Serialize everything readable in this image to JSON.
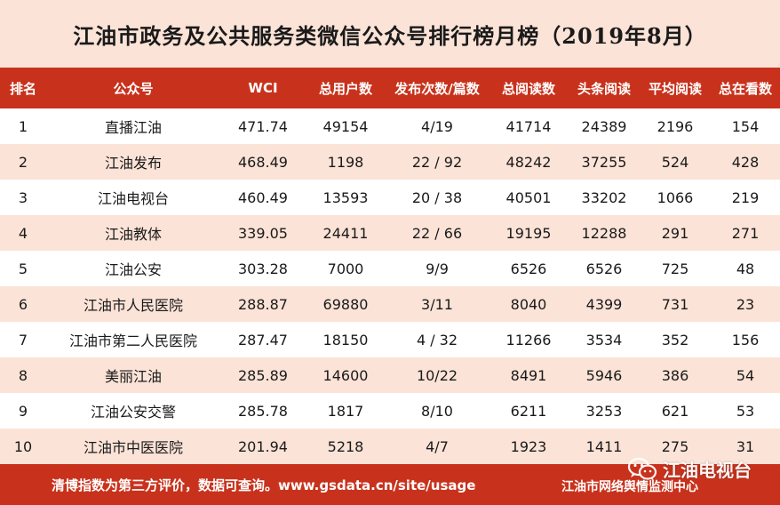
{
  "title": "江油市政务及公共服务类微信公众号排行榜月榜（2019年8月）",
  "columns": [
    "排名",
    "公众号",
    "WCI",
    "总用户数",
    "发布次数/篇数",
    "总阅读数",
    "头条阅读",
    "平均阅读",
    "总在看数"
  ],
  "rows": [
    [
      "1",
      "直播江油",
      "471.74",
      "49154",
      "4/19",
      "41714",
      "24389",
      "2196",
      "154"
    ],
    [
      "2",
      "江油发布",
      "468.49",
      "1198",
      "22 / 92",
      "48242",
      "37255",
      "524",
      "428"
    ],
    [
      "3",
      "江油电视台",
      "460.49",
      "13593",
      "20 / 38",
      "40501",
      "33202",
      "1066",
      "219"
    ],
    [
      "4",
      "江油教体",
      "339.05",
      "24411",
      "22 / 66",
      "19195",
      "12288",
      "291",
      "271"
    ],
    [
      "5",
      "江油公安",
      "303.28",
      "7000",
      "9/9",
      "6526",
      "6526",
      "725",
      "48"
    ],
    [
      "6",
      "江油市人民医院",
      "288.87",
      "69880",
      "3/11",
      "8040",
      "4399",
      "731",
      "23"
    ],
    [
      "7",
      "江油市第二人民医院",
      "287.47",
      "18150",
      "4 / 32",
      "11266",
      "3534",
      "352",
      "156"
    ],
    [
      "8",
      "美丽江油",
      "285.89",
      "14600",
      "10/22",
      "8491",
      "5946",
      "386",
      "54"
    ],
    [
      "9",
      "江油公安交警",
      "285.78",
      "1817",
      "8/10",
      "6211",
      "3253",
      "621",
      "53"
    ],
    [
      "10",
      "江油市中医医院",
      "201.94",
      "5218",
      "4/7",
      "1923",
      "1411",
      "275",
      "31"
    ]
  ],
  "footer": {
    "note": "清博指数为第三方评价，数据可查询。www.gsdata.cn/site/usage",
    "org": "江油市网络舆情监测中心"
  },
  "watermark": {
    "icon": "wechat-icon",
    "text": "江油电视台"
  },
  "colors": {
    "header_red": "#c8321c",
    "row_tint": "#fbe3d7"
  }
}
